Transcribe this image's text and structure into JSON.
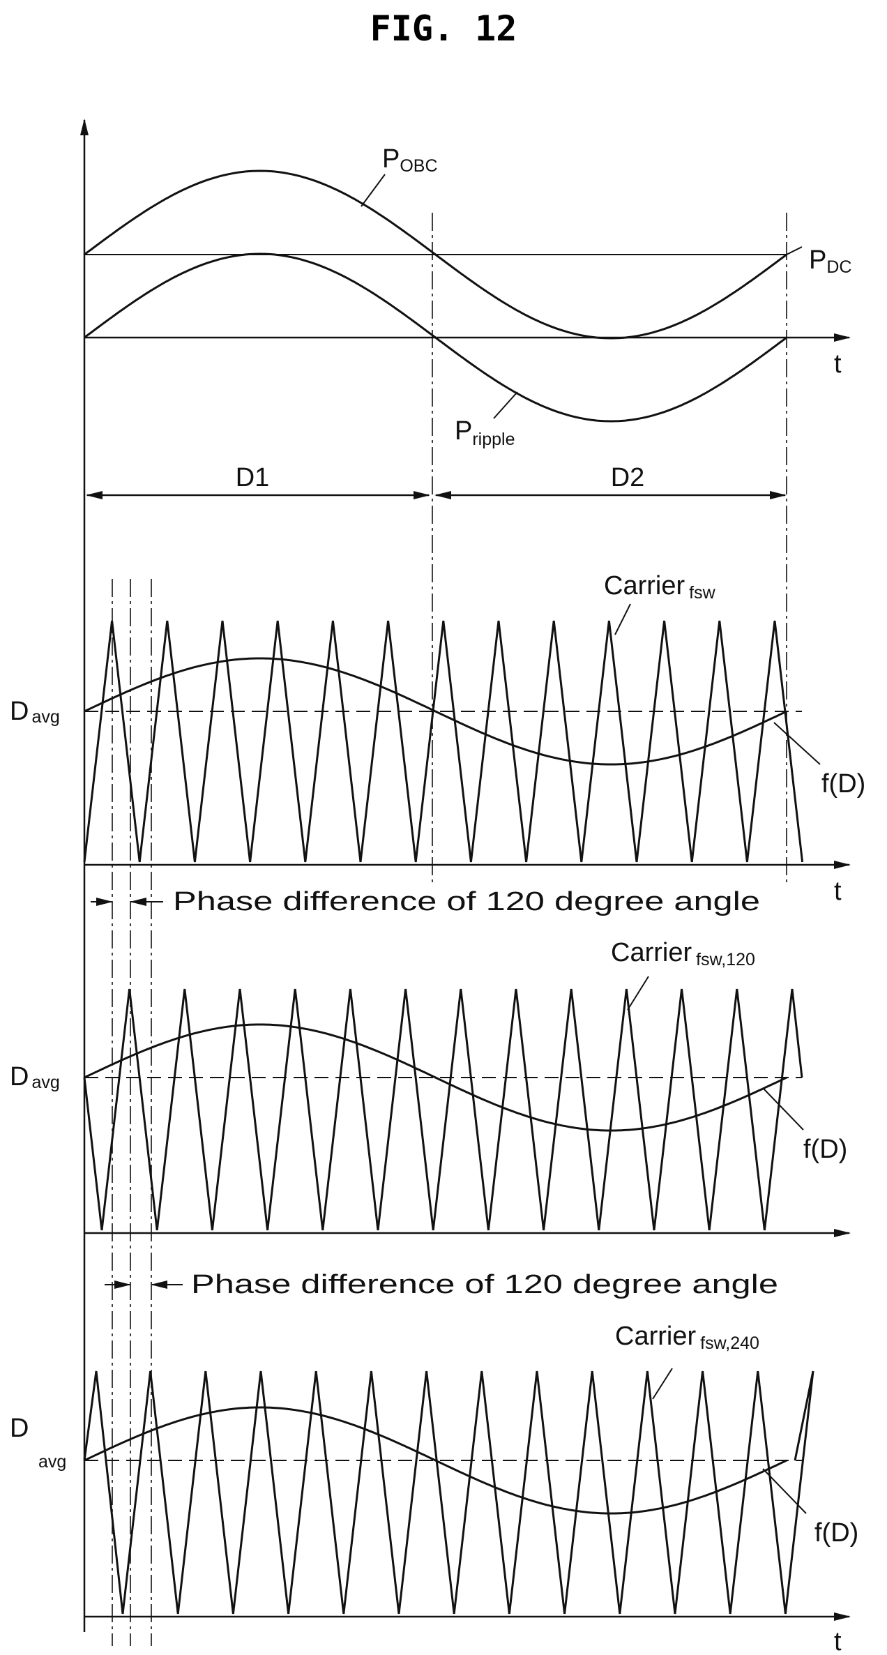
{
  "figure": {
    "title": "FIG. 12"
  },
  "panel_power": {
    "p_obc": {
      "main": "P",
      "sub": "OBC"
    },
    "p_dc": {
      "main": "P",
      "sub": "DC"
    },
    "p_ripple": {
      "main": "P",
      "sub": "ripple"
    },
    "time_axis": "t",
    "interval_1": "D1",
    "interval_2": "D2"
  },
  "panel_carrier_0": {
    "carrier": {
      "main": "Carrier",
      "sub": "fsw"
    },
    "d_avg": {
      "main": "D",
      "sub": "avg"
    },
    "f_d": "f(D)",
    "time_axis": "t"
  },
  "phase_note_1": "Phase difference of 120 degree angle",
  "panel_carrier_120": {
    "carrier": {
      "main": "Carrier",
      "sub": "fsw,120"
    },
    "d_avg": {
      "main": "D",
      "sub": "avg"
    },
    "f_d": "f(D)"
  },
  "phase_note_2": "Phase difference of 120 degree angle",
  "panel_carrier_240": {
    "carrier": {
      "main": "Carrier",
      "sub": "fsw,240"
    },
    "d_avg": {
      "main": "D",
      "sub": "avg"
    },
    "f_d": "f(D)",
    "time_axis": "t"
  }
}
